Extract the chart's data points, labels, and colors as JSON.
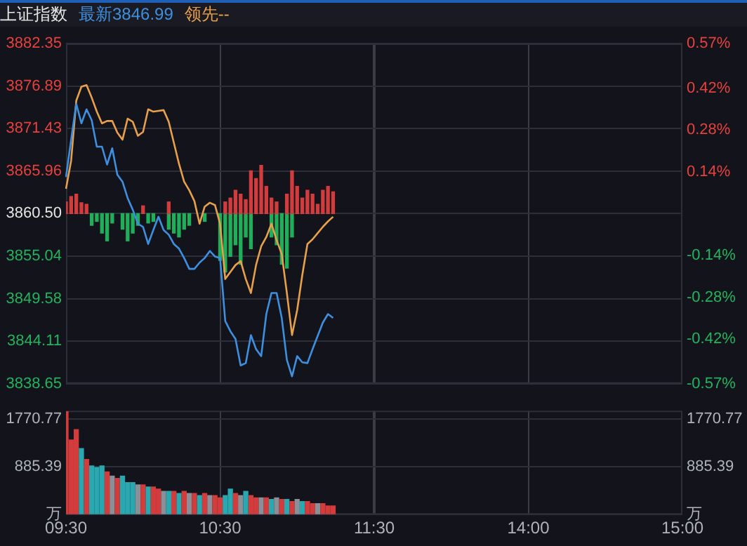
{
  "chart_data": [
    {
      "type": "line",
      "title": "上证指数",
      "legend": "top left",
      "grid": true,
      "marker": "none",
      "tick_labels": "y",
      "categories": [
        null,
        null,
        null,
        null,
        null,
        null,
        null,
        null,
        null,
        null,
        null,
        null,
        null,
        null,
        null,
        null,
        null,
        null,
        null,
        null,
        null,
        null,
        null,
        null,
        null,
        null,
        null,
        null,
        null,
        null,
        null,
        null,
        null,
        null,
        null,
        null,
        null,
        null,
        null,
        null,
        null,
        null,
        null,
        null,
        null,
        null,
        null,
        null,
        null,
        null,
        null,
        null,
        null,
        null,
        null,
        null,
        null,
        null,
        null,
        null,
        null,
        null,
        null,
        null,
        null,
        null,
        null,
        null,
        null,
        null,
        null,
        null,
        null,
        null,
        null,
        null,
        null,
        null,
        null,
        null,
        null,
        null,
        null,
        null,
        null,
        null,
        null,
        null,
        null,
        null,
        null,
        null,
        null,
        null,
        null,
        null,
        null,
        null,
        null,
        null,
        null,
        null,
        null,
        null,
        null,
        null,
        null,
        null,
        null,
        null,
        null,
        null,
        null,
        null,
        null,
        null,
        null,
        null,
        null,
        null,
        null
      ],
      "ylim": [
        3838.65,
        3882.35
      ],
      "yticks": [
        3838.65,
        3844.11,
        3849.58,
        3855.04,
        {
          "value": 3860.5,
          "label": "3860.50"
        },
        3865.96,
        3871.43,
        3876.89,
        3882.35
      ],
      "y2lim": [
        -0.57,
        0.57
      ],
      "y2ticks": [
        {
          "value": -0.57,
          "label": "-0.57%"
        },
        {
          "value": -0.42,
          "label": "-0.42%"
        },
        {
          "value": -0.28,
          "label": "-0.28%"
        },
        {
          "value": -0.14,
          "label": "-0.14%"
        },
        {
          "value": 0,
          "label": null
        },
        {
          "value": 0.14,
          "label": "0.14%"
        },
        {
          "value": 0.28,
          "label": "0.28%"
        },
        {
          "value": 0.42,
          "label": "0.42%"
        },
        {
          "value": 0.57,
          "label": "0.57%"
        }
      ],
      "series": [
        {
          "type": "bar",
          "color": "#d23c3c",
          "base": [
            3860.5,
            3860.5,
            3860.5,
            3860.5,
            3860.5,
            null,
            null,
            null,
            null,
            null,
            null,
            null,
            null,
            null,
            null,
            3860.5,
            null,
            null,
            null,
            null,
            3860.5,
            null,
            null,
            null,
            null,
            null,
            null,
            null,
            null,
            null,
            null,
            3860.5,
            3860.5,
            3860.5,
            3860.5,
            3860.5,
            3860.5,
            3860.5,
            3860.5,
            3860.5,
            3860.5,
            3860.5,
            null,
            3860.5,
            3860.5,
            3860.5,
            3860.5,
            3860.5,
            3860.5,
            3860.5,
            3860.5,
            3860.5,
            3860.5,
            null,
            null,
            null,
            null,
            null,
            null,
            null,
            null,
            null,
            null,
            null,
            null,
            null,
            null,
            null,
            null,
            null,
            null,
            null,
            null,
            null,
            null,
            null,
            null,
            null,
            null,
            null,
            null,
            null,
            null,
            null,
            null,
            null,
            null,
            null,
            null,
            null,
            null,
            null,
            null,
            null,
            null,
            null,
            null,
            null,
            null,
            null,
            null,
            null,
            null,
            null,
            null,
            null,
            null,
            null,
            null,
            null,
            null,
            null,
            null,
            null,
            null,
            null,
            null,
            null,
            null,
            null,
            null
          ],
          "values": [
            1.5,
            2.2,
            2.5,
            1.4,
            1.2,
            null,
            null,
            null,
            null,
            null,
            null,
            null,
            null,
            null,
            null,
            1.0,
            null,
            null,
            null,
            null,
            1.5,
            null,
            null,
            null,
            null,
            null,
            null,
            null,
            null,
            null,
            null,
            1.5,
            2.0,
            3.0,
            2.5,
            1.8,
            5.5,
            4.5,
            6.2,
            3.5,
            2.0,
            1.5,
            null,
            2.5,
            5.5,
            3.5,
            2.0,
            3.0,
            2.5,
            1.2,
            3.0,
            3.5,
            2.8,
            null,
            null,
            null,
            null,
            null,
            null,
            null,
            null,
            null,
            null,
            null,
            null,
            null,
            null,
            null,
            null,
            null,
            null,
            null,
            null,
            null,
            null,
            null,
            null,
            null,
            null,
            null,
            null,
            null,
            null,
            null,
            null,
            null,
            null,
            null,
            null,
            null,
            null,
            null,
            null,
            null,
            null,
            null,
            null,
            null,
            null,
            null,
            null,
            null,
            null,
            null,
            null,
            null,
            null,
            null,
            null,
            null,
            null,
            null,
            null,
            null,
            null,
            null,
            null,
            null,
            null,
            null,
            null
          ]
        },
        {
          "type": "bar",
          "color": "#1fae5a",
          "base": [
            null,
            null,
            null,
            null,
            null,
            3860.5,
            3860.5,
            3860.5,
            3860.5,
            3860.5,
            null,
            3860.5,
            3860.5,
            3860.5,
            3860.5,
            null,
            3860.5,
            3860.5,
            null,
            null,
            3860.5,
            3860.5,
            3860.5,
            3860.5,
            3860.5,
            null,
            null,
            3860.5,
            null,
            null,
            3860.5,
            3860.5,
            3860.5,
            3860.5,
            3860.5,
            3860.5,
            3860.5,
            null,
            null,
            null,
            3860.5,
            3860.5,
            3860.5,
            3860.5,
            3860.5,
            null,
            null,
            null,
            null,
            null,
            null,
            null,
            null,
            null,
            null,
            null,
            null,
            null,
            null,
            null,
            null,
            null,
            null,
            null,
            null,
            null,
            null,
            null,
            null,
            null,
            null,
            null,
            null,
            null,
            null,
            null,
            null,
            null,
            null,
            null,
            null,
            null,
            null,
            null,
            null,
            null,
            null,
            null,
            null,
            null,
            null,
            null,
            null,
            null,
            null,
            null,
            null,
            null,
            null,
            null,
            null,
            null,
            null,
            null,
            null,
            null,
            null,
            null,
            null,
            null,
            null,
            null,
            null,
            null,
            null,
            null,
            null,
            null,
            null,
            null,
            null
          ],
          "values": [
            null,
            null,
            null,
            null,
            null,
            -1.5,
            -1.0,
            -2.5,
            -3.5,
            -1.2,
            null,
            -2.0,
            -3.5,
            -2.5,
            -1.5,
            null,
            -1.2,
            -1.0,
            null,
            null,
            -2.0,
            -2.5,
            -3.0,
            -2.0,
            -1.5,
            null,
            null,
            -1.0,
            null,
            null,
            -6.0,
            -7.5,
            -5.5,
            -4.0,
            -6.5,
            -3.0,
            -4.5,
            null,
            null,
            null,
            -3.0,
            -4.0,
            -6.5,
            -7.0,
            -3.0,
            null,
            null,
            null,
            null,
            null,
            null,
            null,
            null,
            null,
            null,
            null,
            null,
            null,
            null,
            null,
            null,
            null,
            null,
            null,
            null,
            null,
            null,
            null,
            null,
            null,
            null,
            null,
            null,
            null,
            null,
            null,
            null,
            null,
            null,
            null,
            null,
            null,
            null,
            null,
            null,
            null,
            null,
            null,
            null,
            null,
            null,
            null,
            null,
            null,
            null,
            null,
            null,
            null,
            null,
            null,
            null,
            null,
            null,
            null,
            null,
            null,
            null,
            null,
            null,
            null,
            null,
            null,
            null,
            null,
            null,
            null,
            null,
            null,
            null,
            null,
            null
          ]
        },
        {
          "name": "最新3846.99",
          "color": "#3d8fe0",
          "values": [
            3865.2,
            3870.0,
            3874.6,
            3872.1,
            3873.9,
            3872.5,
            3869.1,
            3869.1,
            3866.8,
            3868.9,
            3865.5,
            3864.6,
            3862.5,
            3861.0,
            3859.2,
            3858.8,
            3856.6,
            3858.4,
            3860.1,
            3858.4,
            3857.8,
            3856.6,
            3856.0,
            3854.8,
            3853.4,
            3853.4,
            3854.2,
            3854.8,
            3855.7,
            3855.0,
            3854.8,
            3846.7,
            3845.4,
            3844.4,
            3841.0,
            3841.3,
            3844.9,
            3843.1,
            3842.2,
            3847.6,
            3850.3,
            3850.3,
            3847.1,
            3841.7,
            3839.6,
            3842.2,
            3841.4,
            3841.3,
            3843.1,
            3844.8,
            3846.5,
            3847.6,
            3847.1,
            null,
            null,
            null,
            null,
            null,
            null,
            null,
            null,
            null,
            null,
            null,
            null,
            null,
            null,
            null,
            null,
            null,
            null,
            null,
            null,
            null,
            null,
            null,
            null,
            null,
            null,
            null,
            null,
            null,
            null,
            null,
            null,
            null,
            null,
            null,
            null,
            null,
            null,
            null,
            null,
            null,
            null,
            null,
            null,
            null,
            null,
            null,
            null,
            null,
            null,
            null,
            null,
            null,
            null,
            null,
            null,
            null,
            null,
            null,
            null,
            null,
            null,
            null,
            null,
            null,
            null,
            null,
            null
          ]
        },
        {
          "name": "领先--",
          "color": "#e8a04a",
          "values": [
            3863.7,
            3867.3,
            3875.0,
            3876.8,
            3877.0,
            3875.4,
            3873.6,
            3872.1,
            3872.4,
            3872.4,
            3870.9,
            3870.0,
            3872.7,
            3872.3,
            3870.5,
            3871.0,
            3873.9,
            3873.6,
            3873.7,
            3873.8,
            3872.3,
            3869.6,
            3866.9,
            3864.6,
            3863.5,
            3862.1,
            3859.2,
            3861.4,
            3861.9,
            3861.6,
            3859.2,
            3852.1,
            3853.0,
            3853.9,
            3854.4,
            3852.1,
            3850.3,
            3853.9,
            3856.3,
            3857.5,
            3859.2,
            3857.1,
            3855.3,
            3850.3,
            3844.9,
            3848.1,
            3852.6,
            3856.6,
            3857.2,
            3858.0,
            3858.8,
            3859.5,
            3860.1,
            null,
            null,
            null,
            null,
            null,
            null,
            null,
            null,
            null,
            null,
            null,
            null,
            null,
            null,
            null,
            null,
            null,
            null,
            null,
            null,
            null,
            null,
            null,
            null,
            null,
            null,
            null,
            null,
            null,
            null,
            null,
            null,
            null,
            null,
            null,
            null,
            null,
            null,
            null,
            null,
            null,
            null,
            null,
            null,
            null,
            null,
            null,
            null,
            null,
            null,
            null,
            null,
            null,
            null,
            null,
            null,
            null,
            null,
            null,
            null,
            null,
            null,
            null,
            null,
            null,
            null,
            null,
            null
          ]
        }
      ]
    },
    {
      "type": "bar",
      "grid": true,
      "categories": [
        "09:30",
        null,
        null,
        null,
        null,
        null,
        null,
        null,
        null,
        null,
        null,
        null,
        null,
        null,
        null,
        null,
        null,
        null,
        null,
        null,
        null,
        null,
        null,
        null,
        null,
        null,
        null,
        null,
        null,
        null,
        "10:30",
        null,
        null,
        null,
        null,
        null,
        null,
        null,
        null,
        null,
        null,
        null,
        null,
        null,
        null,
        null,
        null,
        null,
        null,
        null,
        null,
        null,
        null,
        null,
        null,
        null,
        null,
        null,
        null,
        null,
        "11:30",
        null,
        null,
        null,
        null,
        null,
        null,
        null,
        null,
        null,
        null,
        null,
        null,
        null,
        null,
        null,
        null,
        null,
        null,
        null,
        null,
        null,
        null,
        null,
        null,
        null,
        null,
        null,
        null,
        null,
        "14:00",
        null,
        null,
        null,
        null,
        null,
        null,
        null,
        null,
        null,
        null,
        null,
        null,
        null,
        null,
        null,
        null,
        null,
        null,
        null,
        null,
        null,
        null,
        null,
        null,
        null,
        null,
        null,
        null,
        null,
        "15:00"
      ],
      "ylim": [
        0,
        1920
      ],
      "yticks": [
        {
          "value": 0,
          "label": "万"
        },
        885.39,
        1770.77
      ],
      "y2lim": [
        0,
        1920
      ],
      "y2ticks": [
        {
          "value": 0,
          "label": "万"
        },
        885.39,
        1770.77
      ],
      "values": [
        1900,
        1380,
        1570,
        1220,
        1020,
        900,
        870,
        900,
        790,
        710,
        670,
        710,
        590,
        590,
        550,
        550,
        510,
        510,
        470,
        430,
        430,
        430,
        390,
        430,
        390,
        390,
        350,
        390,
        350,
        350,
        310,
        350,
        470,
        390,
        350,
        430,
        350,
        310,
        310,
        310,
        280,
        310,
        280,
        280,
        240,
        280,
        240,
        240,
        200,
        200,
        200,
        160,
        160,
        null,
        null,
        null,
        null,
        null,
        null,
        null,
        null,
        null,
        null,
        null,
        null,
        null,
        null,
        null,
        null,
        null,
        null,
        null,
        null,
        null,
        null,
        null,
        null,
        null,
        null,
        null,
        null,
        null,
        null,
        null,
        null,
        null,
        null,
        null,
        null,
        null,
        null,
        null,
        null,
        null,
        null,
        null,
        null,
        null,
        null,
        null,
        null,
        null,
        null,
        null,
        null,
        null,
        null,
        null,
        null,
        null,
        null,
        null,
        null,
        null,
        null,
        null,
        null,
        null,
        null,
        null,
        null
      ],
      "colors": [
        "#d23c3c",
        "#d23c3c",
        "#d23c3c",
        "#2aa8b0",
        "#d23c3c",
        "#2aa8b0",
        "#2aa8b0",
        "#2aa8b0",
        "#d23c3c",
        "#8a8f98",
        "#d23c3c",
        "#2aa8b0",
        "#2aa8b0",
        "#2aa8b0",
        "#8a8f98",
        "#d23c3c",
        "#2aa8b0",
        "#d23c3c",
        "#d23c3c",
        "#8a8f98",
        "#2aa8b0",
        "#d23c3c",
        "#2aa8b0",
        "#d23c3c",
        "#8a8f98",
        "#d23c3c",
        "#2aa8b0",
        "#d23c3c",
        "#8a8f98",
        "#d23c3c",
        "#d23c3c",
        "#2aa8b0",
        "#2aa8b0",
        "#d23c3c",
        "#8a8f98",
        "#2aa8b0",
        "#d23c3c",
        "#d23c3c",
        "#8a8f98",
        "#d23c3c",
        "#2aa8b0",
        "#8a8f98",
        "#d23c3c",
        "#2aa8b0",
        "#d23c3c",
        "#8a8f98",
        "#2aa8b0",
        "#d23c3c",
        "#d23c3c",
        "#8a8f98",
        "#d23c3c",
        "#d23c3c",
        "#d23c3c",
        null,
        null,
        null,
        null,
        null,
        null,
        null,
        null,
        null,
        null,
        null,
        null,
        null,
        null,
        null,
        null,
        null,
        null,
        null,
        null,
        null,
        null,
        null,
        null,
        null,
        null,
        null,
        null,
        null,
        null,
        null,
        null,
        null,
        null,
        null,
        null,
        null,
        null,
        null,
        null,
        null,
        null,
        null,
        null,
        null,
        null,
        null,
        null,
        null,
        null,
        null,
        null,
        null,
        null,
        null,
        null,
        null,
        null,
        null,
        null,
        null,
        null,
        null,
        null,
        null,
        null,
        null,
        null
      ]
    }
  ]
}
